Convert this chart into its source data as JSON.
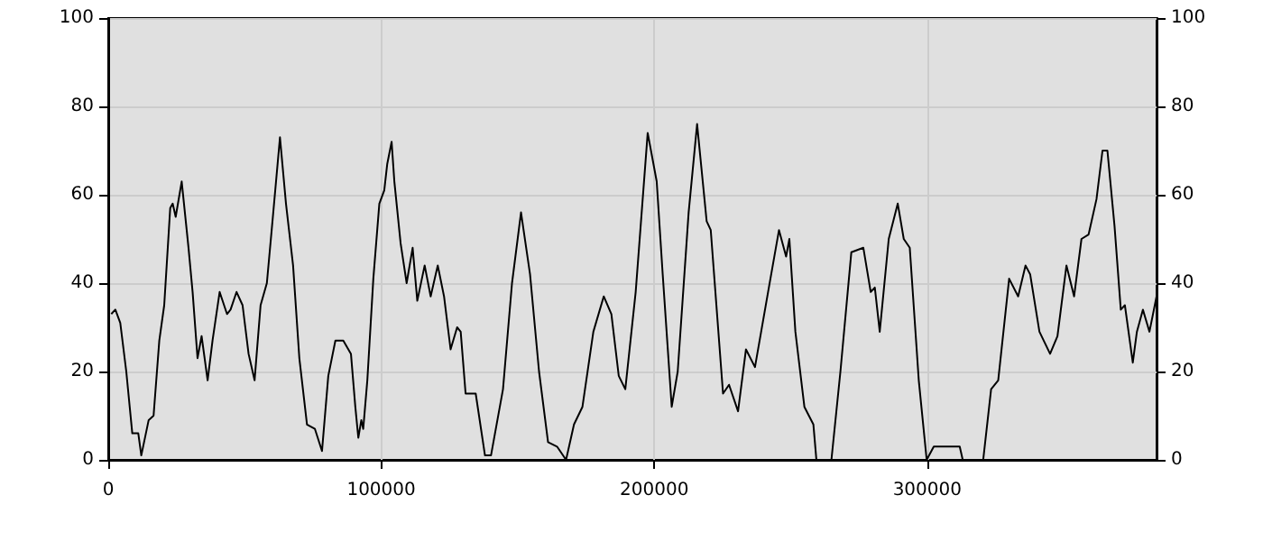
{
  "chart_data": {
    "type": "line",
    "color": "#000000",
    "marker": "none",
    "line_style": "solid",
    "grid": true,
    "xlim": [
      0,
      384000
    ],
    "xticks": [
      0,
      100000,
      200000,
      300000
    ],
    "ylim": [
      0,
      100
    ],
    "yticks": [
      0,
      20,
      40,
      60,
      80,
      100
    ],
    "y2lim": [
      0,
      100
    ],
    "y2ticks": [
      0,
      20,
      40,
      60,
      80,
      100
    ],
    "x": [
      1100,
      2600,
      4400,
      6600,
      8800,
      11000,
      12100,
      14800,
      16600,
      18700,
      20500,
      22700,
      23600,
      24700,
      26900,
      29400,
      30900,
      32700,
      34200,
      36400,
      38200,
      40800,
      43500,
      44800,
      47000,
      49200,
      51400,
      53600,
      55800,
      58100,
      60300,
      62900,
      65100,
      67700,
      70000,
      72800,
      75700,
      78300,
      80600,
      83200,
      86100,
      88900,
      90500,
      91600,
      92700,
      93400,
      94900,
      97100,
      99300,
      101100,
      102200,
      103800,
      104800,
      107100,
      109300,
      111500,
      113200,
      115900,
      118100,
      120700,
      123000,
      125400,
      127800,
      129100,
      130900,
      134600,
      138000,
      140200,
      144600,
      147900,
      151200,
      154500,
      157800,
      161100,
      164400,
      167700,
      170600,
      173700,
      177700,
      181500,
      184300,
      187000,
      189400,
      193200,
      197600,
      200900,
      203100,
      206400,
      208600,
      212600,
      215700,
      219200,
      220700,
      225200,
      227400,
      230700,
      233600,
      236900,
      241700,
      245700,
      248300,
      249500,
      251700,
      255000,
      258300,
      259400,
      264900,
      268200,
      272200,
      276600,
      279300,
      280800,
      282600,
      285900,
      289200,
      291400,
      293600,
      296900,
      299800,
      302400,
      311900,
      313000,
      320500,
      323400,
      326000,
      330000,
      333300,
      336000,
      337700,
      341100,
      345000,
      347700,
      351000,
      353800,
      356500,
      359100,
      362000,
      364200,
      366000,
      368600,
      370900,
      372400,
      375300,
      376800,
      379000,
      381400,
      384000
    ],
    "values": [
      33,
      34,
      31,
      20,
      6,
      6,
      1,
      9,
      10,
      27,
      35,
      57,
      58,
      55,
      63,
      48,
      38,
      23,
      28,
      18,
      27,
      38,
      33,
      34,
      38,
      35,
      24,
      18,
      35,
      40,
      55,
      73,
      58,
      44,
      23,
      8,
      7,
      2,
      19,
      27,
      27,
      24,
      12,
      5,
      9,
      7,
      18,
      41,
      58,
      61,
      67,
      72,
      63,
      49,
      40,
      48,
      36,
      44,
      37,
      44,
      37,
      25,
      30,
      29,
      15,
      15,
      1,
      1,
      16,
      40,
      56,
      42,
      20,
      4,
      3,
      0,
      8,
      12,
      29,
      37,
      33,
      19,
      16,
      38,
      74,
      63,
      42,
      12,
      20,
      56,
      76,
      54,
      52,
      15,
      17,
      11,
      25,
      21,
      38,
      52,
      46,
      50,
      29,
      12,
      8,
      0,
      0,
      20,
      47,
      48,
      38,
      39,
      29,
      50,
      58,
      50,
      48,
      18,
      0,
      3,
      3,
      0,
      0,
      16,
      18,
      41,
      37,
      44,
      42,
      29,
      24,
      28,
      44,
      37,
      50,
      51,
      59,
      70,
      70,
      53,
      34,
      35,
      22,
      29,
      34,
      29,
      37
    ]
  }
}
